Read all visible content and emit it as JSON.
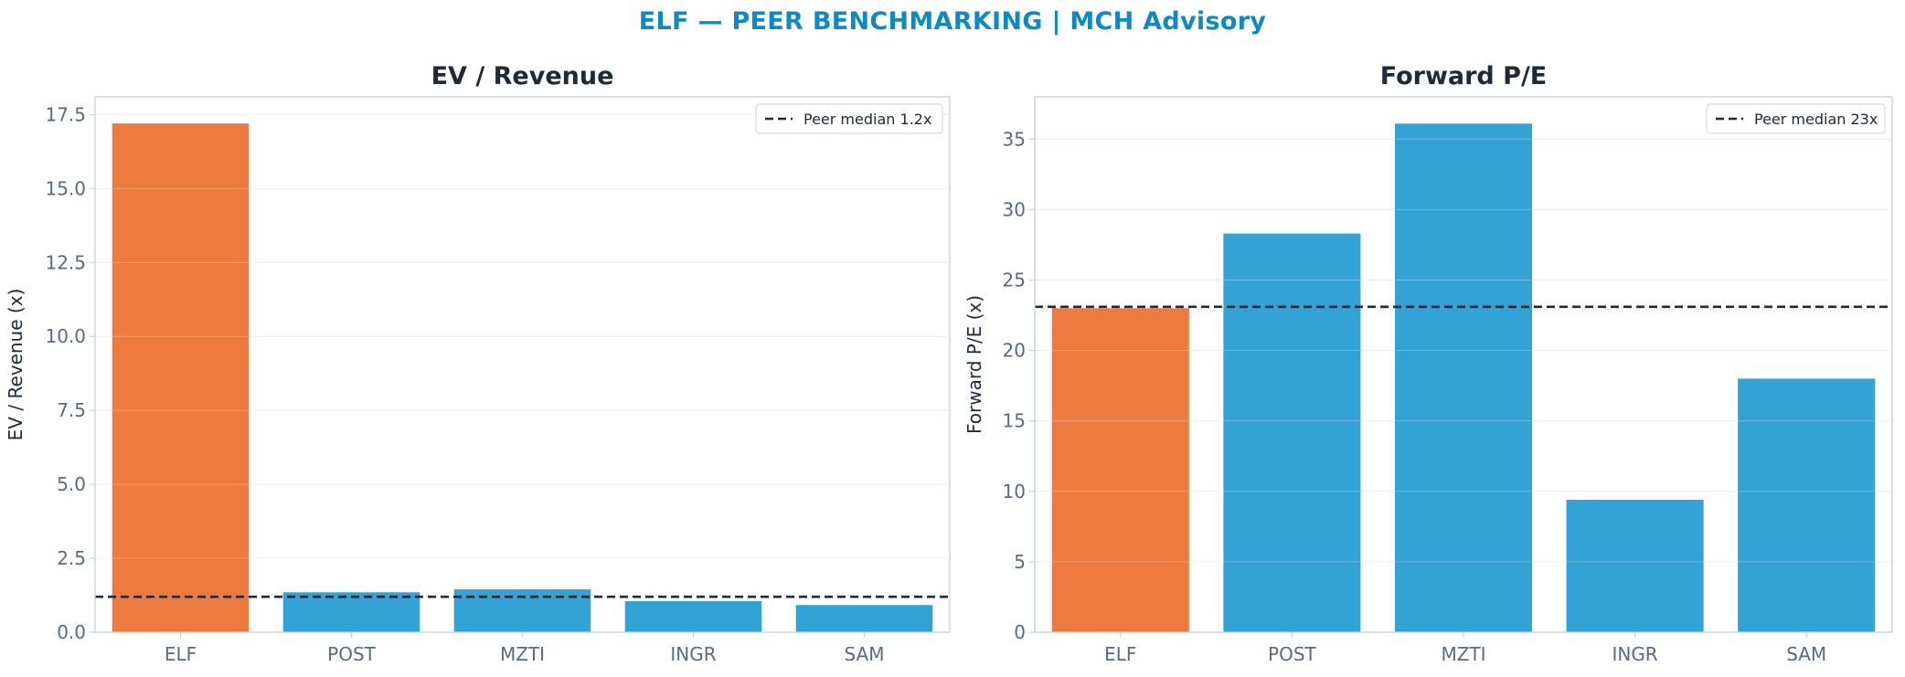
{
  "suptitle": "ELF — PEER BENCHMARKING | MCH Advisory",
  "colors": {
    "highlight": "#ed7a3f",
    "peer": "#33a2d4",
    "median": "#1c2a3a",
    "title": "#0a8bc8"
  },
  "chart_data": [
    {
      "type": "bar",
      "title": "EV / Revenue",
      "ylabel": "EV / Revenue (x)",
      "categories": [
        "ELF",
        "POST",
        "MZTI",
        "INGR",
        "SAM"
      ],
      "values": [
        17.2,
        1.35,
        1.45,
        1.05,
        0.92
      ],
      "highlight": "ELF",
      "ylim": [
        0,
        18.1
      ],
      "yticks": [
        0,
        2.5,
        5,
        7.5,
        10,
        12.5,
        15,
        17.5
      ],
      "ytick_labels": [
        "0.0",
        "2.5",
        "5.0",
        "7.5",
        "10.0",
        "12.5",
        "15.0",
        "17.5"
      ],
      "median": {
        "value": 1.2,
        "label": "Peer median 1.2x"
      },
      "grid": true,
      "legend": "top-right"
    },
    {
      "type": "bar",
      "title": "Forward P/E",
      "ylabel": "Forward P/E (x)",
      "categories": [
        "ELF",
        "POST",
        "MZTI",
        "INGR",
        "SAM"
      ],
      "values": [
        23.0,
        28.3,
        36.1,
        9.4,
        18.0
      ],
      "highlight": "ELF",
      "ylim": [
        0,
        38
      ],
      "yticks": [
        0,
        5,
        10,
        15,
        20,
        25,
        30,
        35
      ],
      "ytick_labels": [
        "0",
        "5",
        "10",
        "15",
        "20",
        "25",
        "30",
        "35"
      ],
      "median": {
        "value": 23.1,
        "label": "Peer median 23x"
      },
      "grid": true,
      "legend": "top-right"
    }
  ]
}
